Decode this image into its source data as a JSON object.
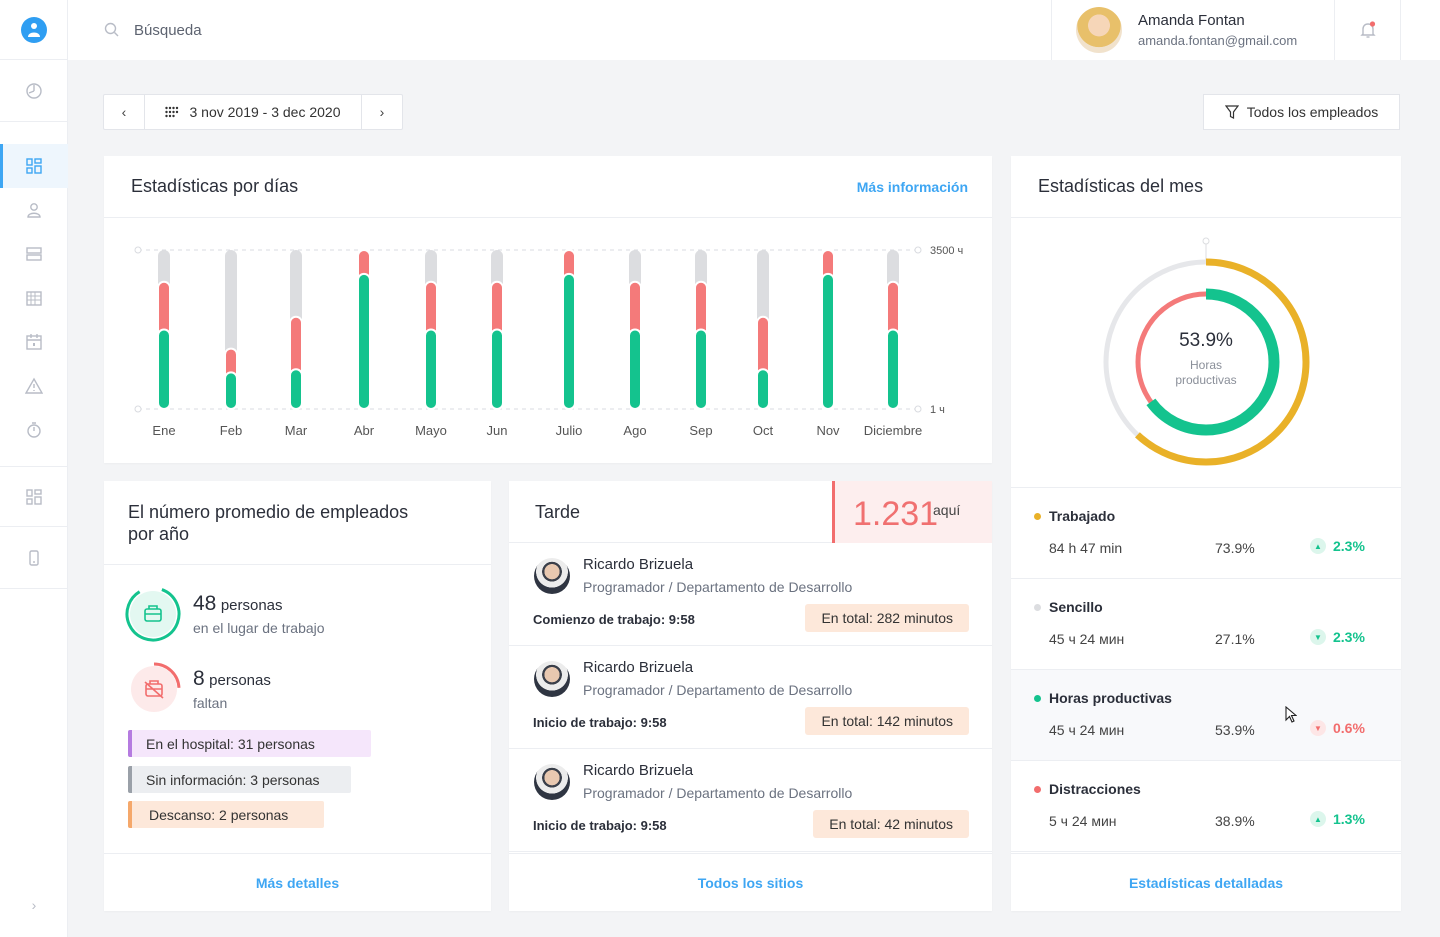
{
  "search": {
    "placeholder": "Búsqueda"
  },
  "user": {
    "name": "Amanda Fontan",
    "email": "amanda.fontan@gmail.com"
  },
  "date_range": {
    "label": "3 nov 2019 - 3 dec 2020",
    "prev": "‹",
    "next": "›"
  },
  "filter": {
    "label": "Todos los empleados"
  },
  "stats_days": {
    "title": "Estadísticas por días",
    "more": "Más información"
  },
  "chart_data": {
    "type": "bar",
    "title": "Estadísticas por días",
    "categories": [
      "Ene",
      "Feb",
      "Mar",
      "Abr",
      "Mayo",
      "Jun",
      "Julio",
      "Ago",
      "Sep",
      "Oct",
      "Nov",
      "Diciembre"
    ],
    "y_top_label": "3500 ч",
    "y_bottom_label": "1 ч",
    "ylim": [
      0,
      1
    ],
    "series": [
      {
        "color": "#14c38e",
        "values": [
          0.5,
          0.23,
          0.25,
          0.85,
          0.5,
          0.5,
          0.85,
          0.5,
          0.5,
          0.25,
          0.85,
          0.5
        ]
      },
      {
        "color": "#f47a7a",
        "values": [
          0.3,
          0.15,
          0.33,
          0.15,
          0.3,
          0.3,
          0.15,
          0.3,
          0.3,
          0.33,
          0.15,
          0.3
        ]
      },
      {
        "color": "#dcdde0",
        "values": [
          0.2,
          0.62,
          0.42,
          0.0,
          0.2,
          0.2,
          0.0,
          0.2,
          0.2,
          0.42,
          0.0,
          0.2
        ]
      }
    ]
  },
  "stats_month": {
    "title": "Estadísticas del mes",
    "donut": {
      "percent": "53.9%",
      "label_line1": "Horas",
      "label_line2": "productivas",
      "outer_fraction": 0.62,
      "inner_fraction": 0.65
    },
    "rows": [
      {
        "name": "Trabajado",
        "time": "84 h 47 min",
        "pct": "73.9%",
        "trend": "2.3%",
        "dir": "up",
        "dot": "#e9b128",
        "trend_color": "#14c38e"
      },
      {
        "name": "Sencillo",
        "time": "45 ч 24 мин",
        "pct": "27.1%",
        "trend": "2.3%",
        "dir": "down",
        "dot": "#dcdde0",
        "trend_color": "#14c38e"
      },
      {
        "name": "Horas productivas",
        "time": "45 ч 24 мин",
        "pct": "53.9%",
        "trend": "0.6%",
        "dir": "down",
        "dot": "#14c38e",
        "trend_color": "#f26d6d"
      },
      {
        "name": "Distracciones",
        "time": "5 ч 24 мин",
        "pct": "38.9%",
        "trend": "1.3%",
        "dir": "up",
        "dot": "#f26d6d",
        "trend_color": "#14c38e"
      }
    ],
    "footer": "Estadísticas detalladas"
  },
  "avg_employees": {
    "title": "El número promedio de empleados por año",
    "present": {
      "count": "48",
      "unit": "personas",
      "sub": "en el lugar de trabajo"
    },
    "absent": {
      "count": "8",
      "unit": "personas",
      "sub": "faltan"
    },
    "tags": [
      {
        "label": "En el hospital: 31 personas",
        "bg": "#f5e6fb",
        "border": "#b57be0"
      },
      {
        "label": "Sin información: 3 personas",
        "bg": "#eceef1",
        "border": "#9aa0a8"
      },
      {
        "label": "Descanso: 2 personas",
        "bg": "#fde8da",
        "border": "#f5a86b"
      }
    ],
    "footer": "Más detalles"
  },
  "late": {
    "title": "Tarde",
    "count": "1.231",
    "unit": "aquí",
    "people": [
      {
        "name": "Ricardo Brizuela",
        "role": "Programador / Departamento de Desarrollo",
        "start": "Comienzo de trabajo: 9:58",
        "total": "En total: 282 minutos"
      },
      {
        "name": "Ricardo Brizuela",
        "role": "Programador / Departamento de Desarrollo",
        "start": "Inicio de trabajo: 9:58",
        "total": "En total: 142 minutos"
      },
      {
        "name": "Ricardo Brizuela",
        "role": "Programador / Departamento de Desarrollo",
        "start": "Inicio de trabajo: 9:58",
        "total": "En total: 42 minutos"
      }
    ],
    "footer": "Todos los sitios"
  }
}
